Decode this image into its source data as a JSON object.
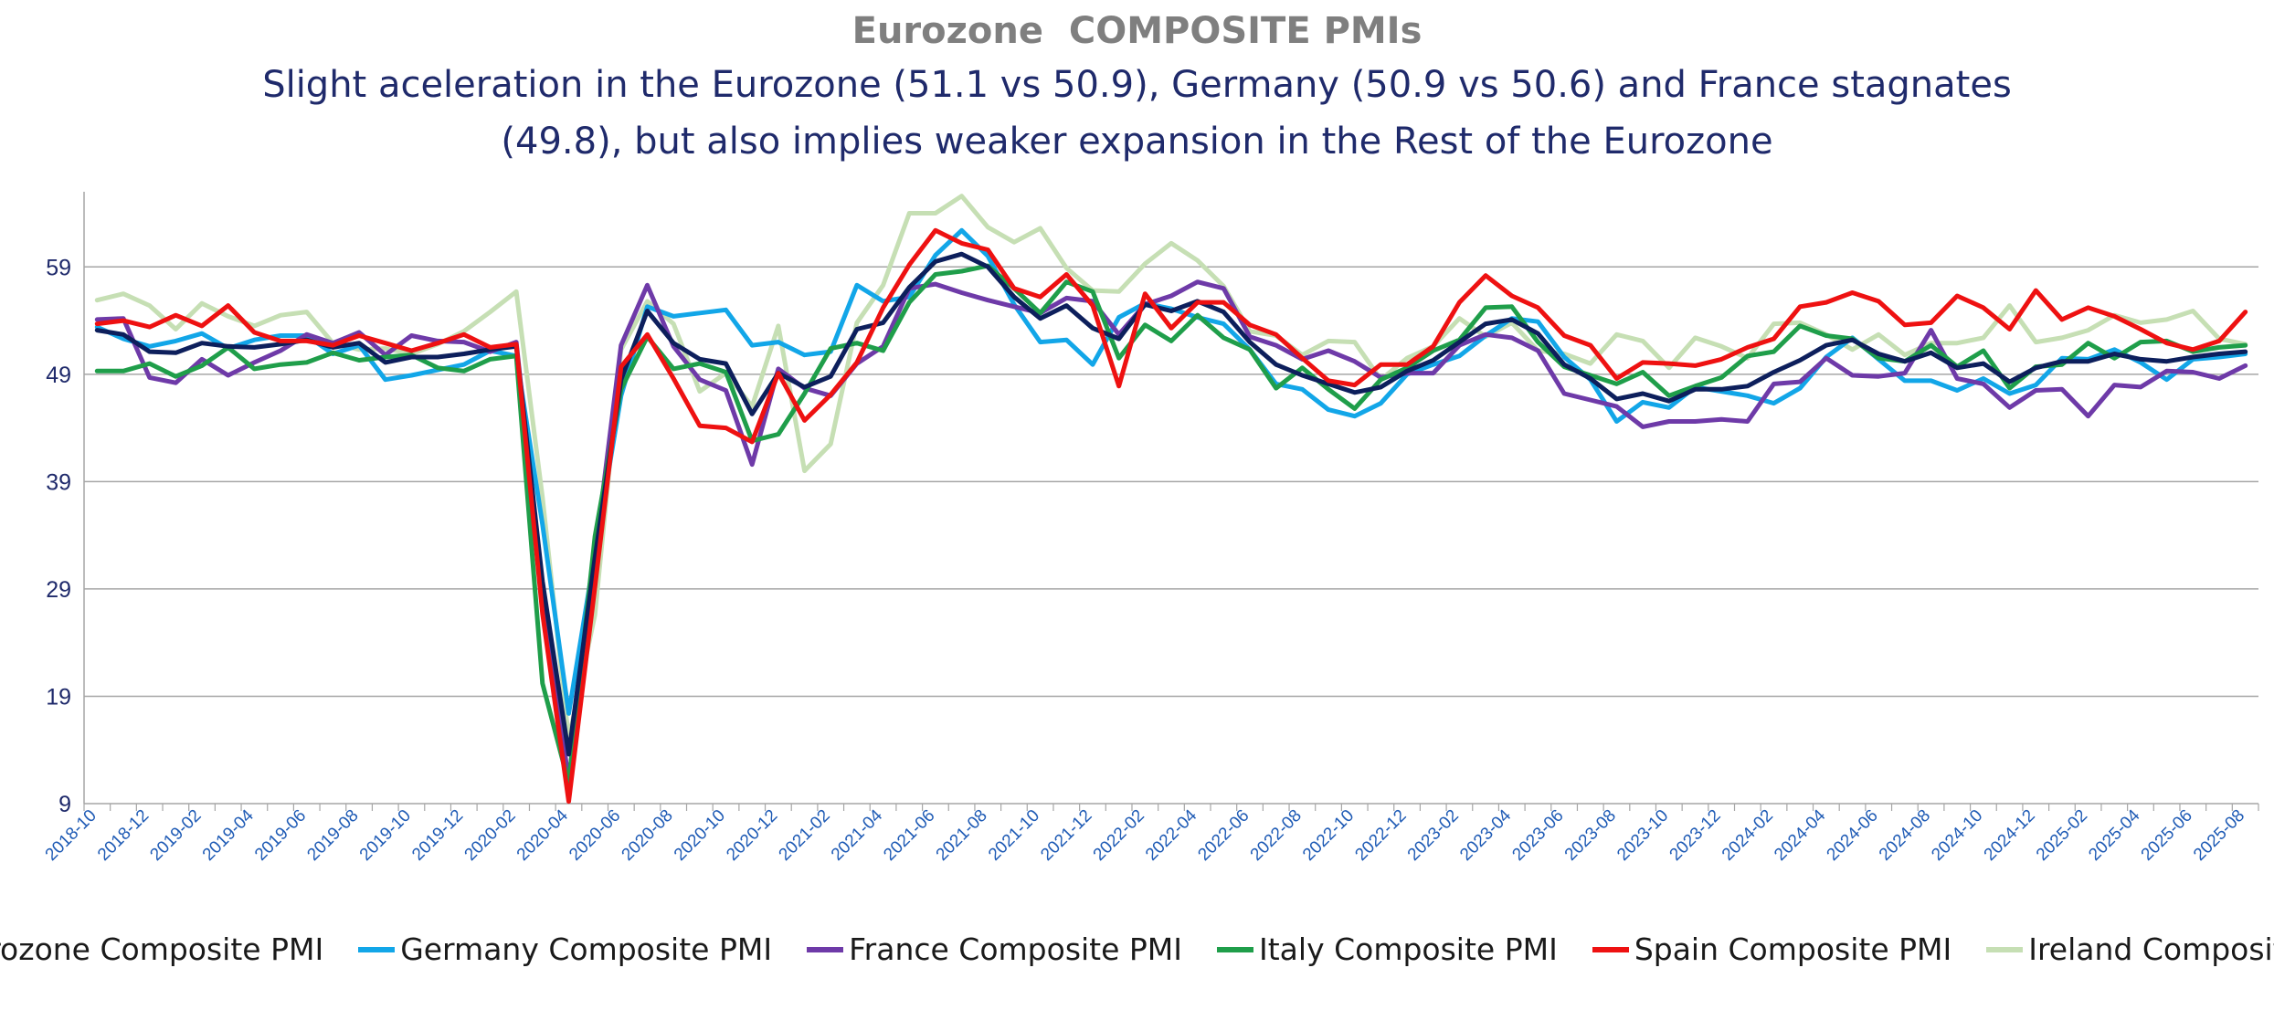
{
  "chart_data": {
    "type": "line",
    "title": "Eurozone  COMPOSITE PMIs",
    "subtitle": "Slight aceleration  in the Eurozone (51.1 vs 50.9), Germany (50.9 vs 50.6) and  France stagnates\n(49.8), but also implies weaker expansion in the Rest of the Eurozone",
    "xlabel": "",
    "ylabel": "",
    "ylim": [
      9,
      66
    ],
    "yticks": [
      9,
      19,
      29,
      39,
      49,
      59
    ],
    "grid": true,
    "legend_position": "bottom",
    "x": [
      "2018-10",
      "2018-11",
      "2018-12",
      "2019-01",
      "2019-02",
      "2019-03",
      "2019-04",
      "2019-05",
      "2019-06",
      "2019-07",
      "2019-08",
      "2019-09",
      "2019-10",
      "2019-11",
      "2019-12",
      "2020-01",
      "2020-02",
      "2020-03",
      "2020-04",
      "2020-05",
      "2020-06",
      "2020-07",
      "2020-08",
      "2020-09",
      "2020-10",
      "2020-11",
      "2020-12",
      "2021-01",
      "2021-02",
      "2021-03",
      "2021-04",
      "2021-05",
      "2021-06",
      "2021-07",
      "2021-08",
      "2021-09",
      "2021-10",
      "2021-11",
      "2021-12",
      "2022-01",
      "2022-02",
      "2022-03",
      "2022-04",
      "2022-05",
      "2022-06",
      "2022-07",
      "2022-08",
      "2022-09",
      "2022-10",
      "2022-11",
      "2022-12",
      "2023-01",
      "2023-02",
      "2023-03",
      "2023-04",
      "2023-05",
      "2023-06",
      "2023-07",
      "2023-08",
      "2023-09",
      "2023-10",
      "2023-11",
      "2023-12",
      "2024-01",
      "2024-02",
      "2024-03",
      "2024-04",
      "2024-05",
      "2024-06",
      "2024-07",
      "2024-08",
      "2024-09",
      "2024-10",
      "2024-11",
      "2024-12",
      "2025-01",
      "2025-02",
      "2025-03",
      "2025-04",
      "2025-05",
      "2025-06",
      "2025-07",
      "2025-08"
    ],
    "xtick_labels": [
      "2018-10",
      "2018-12",
      "2019-02",
      "2019-04",
      "2019-06",
      "2019-08",
      "2019-10",
      "2019-12",
      "2020-02",
      "2020-04",
      "2020-06",
      "2020-08",
      "2020-10",
      "2020-12",
      "2021-02",
      "2021-04",
      "2021-06",
      "2021-08",
      "2021-10",
      "2021-12",
      "2022-02",
      "2022-04",
      "2022-06",
      "2022-08",
      "2022-10",
      "2022-12",
      "2023-02",
      "2023-04",
      "2023-06",
      "2023-08",
      "2023-10",
      "2023-12",
      "2024-02",
      "2024-04",
      "2024-06",
      "2024-08",
      "2024-10",
      "2024-12",
      "2025-02",
      "2025-04",
      "2025-06",
      "2025-08"
    ],
    "series": [
      {
        "name": "Eurozone Composite PMI",
        "color": "#0d1f5c",
        "values": [
          53.1,
          52.7,
          51.1,
          51.0,
          51.9,
          51.6,
          51.5,
          51.8,
          52.2,
          51.5,
          51.9,
          50.1,
          50.6,
          50.6,
          50.9,
          51.3,
          51.6,
          29.7,
          13.6,
          31.9,
          48.5,
          54.9,
          51.9,
          50.4,
          50.0,
          45.3,
          49.1,
          47.8,
          48.8,
          53.2,
          53.8,
          57.1,
          59.5,
          60.2,
          59.0,
          56.2,
          54.2,
          55.4,
          53.3,
          52.3,
          55.5,
          54.9,
          55.8,
          54.8,
          52.0,
          49.9,
          48.9,
          48.1,
          47.3,
          47.8,
          49.3,
          50.3,
          52.0,
          53.7,
          54.1,
          52.8,
          49.9,
          48.6,
          46.7,
          47.2,
          46.5,
          47.6,
          47.6,
          47.9,
          49.2,
          50.3,
          51.7,
          52.2,
          50.9,
          50.2,
          51.0,
          49.6,
          50.0,
          48.3,
          49.6,
          50.2,
          50.2,
          50.9,
          50.4,
          50.2,
          50.6,
          50.9,
          51.1
        ]
      },
      {
        "name": "Germany Composite PMI",
        "color": "#12a6e8",
        "values": [
          53.4,
          52.3,
          51.6,
          52.1,
          52.8,
          51.4,
          52.2,
          52.6,
          52.6,
          50.9,
          51.7,
          48.5,
          48.9,
          49.4,
          49.9,
          51.2,
          50.7,
          35.0,
          17.4,
          32.3,
          47.0,
          55.3,
          54.4,
          54.7,
          55.0,
          51.7,
          52.0,
          50.8,
          51.1,
          57.3,
          55.8,
          56.2,
          60.1,
          62.4,
          60.0,
          55.5,
          52.0,
          52.2,
          49.9,
          54.3,
          55.6,
          55.1,
          54.3,
          53.7,
          51.3,
          48.1,
          47.6,
          45.7,
          45.1,
          46.3,
          49.0,
          49.9,
          50.7,
          52.6,
          54.2,
          53.9,
          50.6,
          48.5,
          44.6,
          46.4,
          45.9,
          47.8,
          47.4,
          47.0,
          46.3,
          47.7,
          50.6,
          52.4,
          50.4,
          48.4,
          48.4,
          47.5,
          48.6,
          47.2,
          48.0,
          50.5,
          50.4,
          51.3,
          50.1,
          48.5,
          50.4,
          50.6,
          50.9
        ]
      },
      {
        "name": "France Composite PMI",
        "color": "#6e3aa8",
        "values": [
          54.1,
          54.2,
          48.7,
          48.2,
          50.4,
          48.9,
          50.1,
          51.2,
          52.7,
          51.9,
          52.9,
          50.8,
          52.6,
          52.1,
          52.0,
          51.1,
          52.0,
          28.9,
          11.1,
          32.1,
          51.7,
          57.3,
          51.6,
          48.5,
          47.5,
          40.6,
          49.5,
          47.7,
          47.0,
          50.0,
          51.6,
          57.0,
          57.4,
          56.6,
          55.9,
          55.3,
          54.7,
          56.1,
          55.8,
          52.7,
          55.5,
          56.3,
          57.6,
          57.0,
          52.5,
          51.7,
          50.4,
          51.2,
          50.2,
          48.7,
          49.1,
          49.1,
          51.7,
          52.7,
          52.4,
          51.2,
          47.2,
          46.6,
          46.0,
          44.1,
          44.6,
          44.6,
          44.8,
          44.6,
          48.1,
          48.3,
          50.5,
          48.9,
          48.8,
          49.1,
          53.1,
          48.6,
          48.1,
          45.9,
          47.5,
          47.6,
          45.1,
          48.0,
          47.8,
          49.3,
          49.2,
          48.6,
          49.8
        ]
      },
      {
        "name": "Italy Composite PMI",
        "color": "#1f9e4a",
        "values": [
          49.3,
          49.3,
          50.0,
          48.8,
          49.8,
          51.5,
          49.5,
          49.9,
          50.1,
          51.0,
          50.3,
          50.6,
          50.8,
          49.6,
          49.3,
          50.4,
          50.7,
          20.2,
          10.9,
          33.9,
          47.6,
          52.5,
          49.5,
          50.0,
          49.2,
          42.8,
          43.4,
          47.2,
          51.4,
          51.9,
          51.2,
          55.7,
          58.3,
          58.6,
          59.1,
          57.0,
          54.7,
          57.6,
          56.7,
          50.5,
          53.6,
          52.1,
          54.5,
          52.4,
          51.3,
          47.7,
          49.6,
          47.6,
          45.8,
          48.5,
          49.6,
          51.2,
          52.2,
          55.2,
          55.3,
          52.0,
          49.7,
          48.9,
          48.1,
          49.2,
          47.0,
          47.9,
          48.7,
          50.7,
          51.1,
          53.5,
          52.6,
          52.3,
          50.5,
          50.2,
          51.7,
          49.7,
          51.2,
          47.7,
          49.7,
          49.9,
          51.9,
          50.5,
          52.0,
          52.1,
          51.1,
          51.5,
          51.7
        ]
      },
      {
        "name": "Spain Composite PMI",
        "color": "#ee1111",
        "values": [
          53.7,
          54.0,
          53.4,
          54.5,
          53.5,
          55.4,
          52.9,
          52.1,
          52.1,
          51.7,
          52.6,
          51.9,
          51.2,
          51.9,
          52.7,
          51.5,
          51.8,
          26.7,
          9.2,
          29.2,
          49.7,
          52.7,
          48.6,
          44.2,
          44.0,
          42.7,
          49.1,
          44.7,
          47.1,
          50.1,
          55.2,
          59.2,
          62.4,
          61.2,
          60.6,
          57.0,
          56.2,
          58.3,
          55.4,
          47.9,
          56.5,
          53.3,
          55.7,
          55.7,
          53.6,
          52.7,
          50.5,
          48.4,
          48.0,
          49.9,
          49.9,
          51.6,
          55.7,
          58.2,
          56.3,
          55.2,
          52.6,
          51.7,
          48.6,
          50.1,
          50.0,
          49.8,
          50.4,
          51.5,
          52.3,
          55.3,
          55.7,
          56.6,
          55.8,
          53.6,
          53.8,
          56.3,
          55.2,
          53.2,
          56.8,
          54.1,
          55.2,
          54.4,
          53.2,
          51.9,
          51.3,
          52.1,
          54.8
        ]
      },
      {
        "name": "Ireland Composite PMI",
        "color": "#c6dfb4",
        "values": [
          55.9,
          56.5,
          55.4,
          53.2,
          55.6,
          54.4,
          53.5,
          54.5,
          54.8,
          51.9,
          51.3,
          51.4,
          50.9,
          51.8,
          53.0,
          54.8,
          56.7,
          37.5,
          15.0,
          26.6,
          51.3,
          55.8,
          53.7,
          47.4,
          49.1,
          46.0,
          53.5,
          40.0,
          42.5,
          53.8,
          57.3,
          64.0,
          64.0,
          65.6,
          62.7,
          61.3,
          62.6,
          58.9,
          56.8,
          56.7,
          59.3,
          61.2,
          59.6,
          57.2,
          53.0,
          52.6,
          50.8,
          52.1,
          52.0,
          48.5,
          50.5,
          51.6,
          54.2,
          52.5,
          53.8,
          51.2,
          50.9,
          50.0,
          52.7,
          52.1,
          49.6,
          52.4,
          51.6,
          50.5,
          53.7,
          53.8,
          52.7,
          51.3,
          52.7,
          50.8,
          51.9,
          51.9,
          52.4,
          55.4,
          52.0,
          52.4,
          53.1,
          54.5,
          53.8,
          54.1,
          54.9,
          52.3,
          51.8
        ]
      }
    ]
  }
}
